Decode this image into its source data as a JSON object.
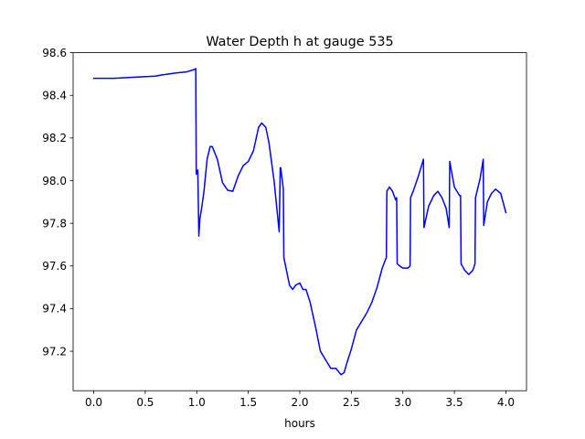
{
  "chart_data": {
    "type": "line",
    "title": "Water Depth h at gauge 535",
    "xlabel": "hours",
    "ylabel": "",
    "xlim": [
      -0.2,
      4.2
    ],
    "ylim": [
      97.015,
      98.6
    ],
    "xticks": [
      0.0,
      0.5,
      1.0,
      1.5,
      2.0,
      2.5,
      3.0,
      3.5,
      4.0
    ],
    "xtick_labels": [
      "0.0",
      "0.5",
      "1.0",
      "1.5",
      "2.0",
      "2.5",
      "3.0",
      "3.5",
      "4.0"
    ],
    "yticks": [
      97.2,
      97.4,
      97.6,
      97.8,
      98.0,
      98.2,
      98.4,
      98.6
    ],
    "ytick_labels": [
      "97.2",
      "97.4",
      "97.6",
      "97.8",
      "98.0",
      "98.2",
      "98.4",
      "98.6"
    ],
    "grid": false,
    "series": [
      {
        "color": "#0000ff",
        "x": [
          0.0,
          0.2,
          0.4,
          0.6,
          0.65,
          0.8,
          0.9,
          0.97,
          0.99,
          0.995,
          1.01,
          1.02,
          1.03,
          1.05,
          1.07,
          1.1,
          1.13,
          1.15,
          1.2,
          1.25,
          1.3,
          1.35,
          1.4,
          1.45,
          1.5,
          1.55,
          1.6,
          1.63,
          1.67,
          1.7,
          1.75,
          1.8,
          1.81,
          1.815,
          1.84,
          1.845,
          1.87,
          1.9,
          1.93,
          1.96,
          2.0,
          2.03,
          2.06,
          2.1,
          2.15,
          2.2,
          2.25,
          2.3,
          2.35,
          2.4,
          2.43,
          2.46,
          2.5,
          2.55,
          2.6,
          2.65,
          2.7,
          2.75,
          2.8,
          2.84,
          2.845,
          2.87,
          2.9,
          2.93,
          2.94,
          2.945,
          2.97,
          3.0,
          3.05,
          3.07,
          3.075,
          3.1,
          3.15,
          3.2,
          3.205,
          3.25,
          3.3,
          3.34,
          3.38,
          3.42,
          3.45,
          3.455,
          3.5,
          3.55,
          3.56,
          3.565,
          3.6,
          3.64,
          3.68,
          3.7,
          3.705,
          3.75,
          3.78,
          3.785,
          3.82,
          3.86,
          3.9,
          3.95,
          4.0
        ],
        "y": [
          98.48,
          98.48,
          98.485,
          98.49,
          98.495,
          98.505,
          98.51,
          98.52,
          98.525,
          98.03,
          98.05,
          97.74,
          97.82,
          97.88,
          97.95,
          98.1,
          98.16,
          98.16,
          98.1,
          97.99,
          97.955,
          97.95,
          98.02,
          98.07,
          98.09,
          98.14,
          98.25,
          98.27,
          98.25,
          98.18,
          98.0,
          97.76,
          98.06,
          98.06,
          97.96,
          97.64,
          97.58,
          97.51,
          97.49,
          97.51,
          97.52,
          97.49,
          97.49,
          97.43,
          97.32,
          97.2,
          97.16,
          97.12,
          97.12,
          97.09,
          97.1,
          97.15,
          97.21,
          97.3,
          97.34,
          97.38,
          97.43,
          97.5,
          97.59,
          97.64,
          97.95,
          97.97,
          97.95,
          97.91,
          97.92,
          97.61,
          97.6,
          97.59,
          97.59,
          97.6,
          97.92,
          97.95,
          98.02,
          98.1,
          97.78,
          97.88,
          97.93,
          97.95,
          97.92,
          97.87,
          97.78,
          98.09,
          97.97,
          97.93,
          97.93,
          97.61,
          97.58,
          97.56,
          97.58,
          97.61,
          97.92,
          98.01,
          98.1,
          97.79,
          97.9,
          97.94,
          97.96,
          97.94,
          97.85
        ]
      }
    ]
  }
}
